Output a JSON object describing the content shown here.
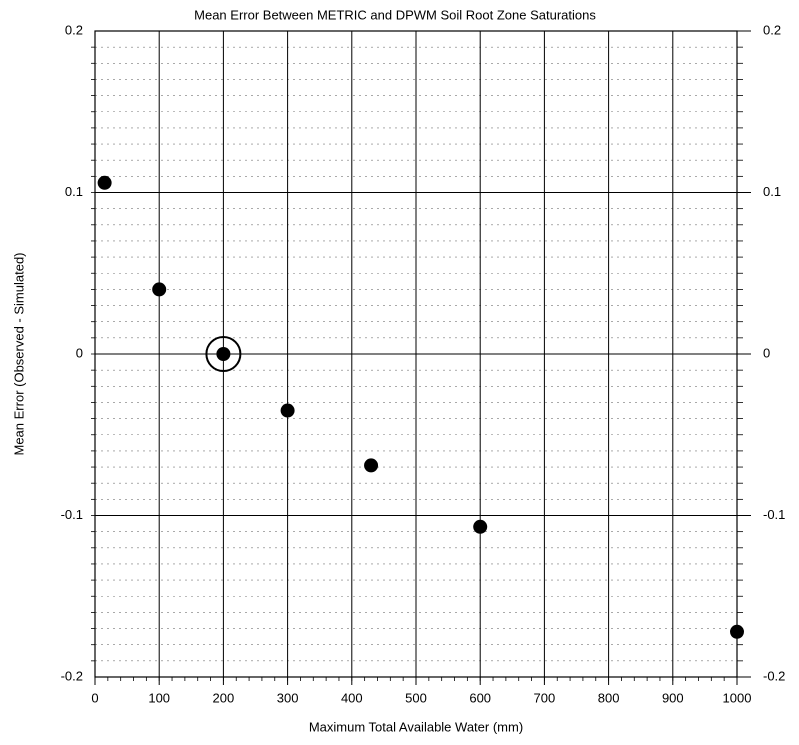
{
  "chart_data": {
    "type": "scatter",
    "title": "Mean Error Between METRIC and DPWM Soil Root Zone Saturations",
    "x_label": "Maximum Total Available Water (mm)",
    "y_label": "Mean Error (Observed - Simulated)",
    "x": [
      15,
      100,
      200,
      300,
      430,
      600,
      1000
    ],
    "values": [
      0.106,
      0.04,
      0,
      -0.035,
      -0.069,
      -0.107,
      -0.172
    ],
    "color": "#000000",
    "highlight_index": 2,
    "xlim": [
      0,
      1000
    ],
    "xticks": [
      0,
      100,
      200,
      300,
      400,
      500,
      600,
      700,
      800,
      900,
      1000
    ],
    "ylim": [
      -0.2,
      0.2
    ],
    "yticks": [
      -0.2,
      -0.1,
      0,
      0.1,
      0.2
    ],
    "grid": true,
    "right_axis_labels": true
  }
}
